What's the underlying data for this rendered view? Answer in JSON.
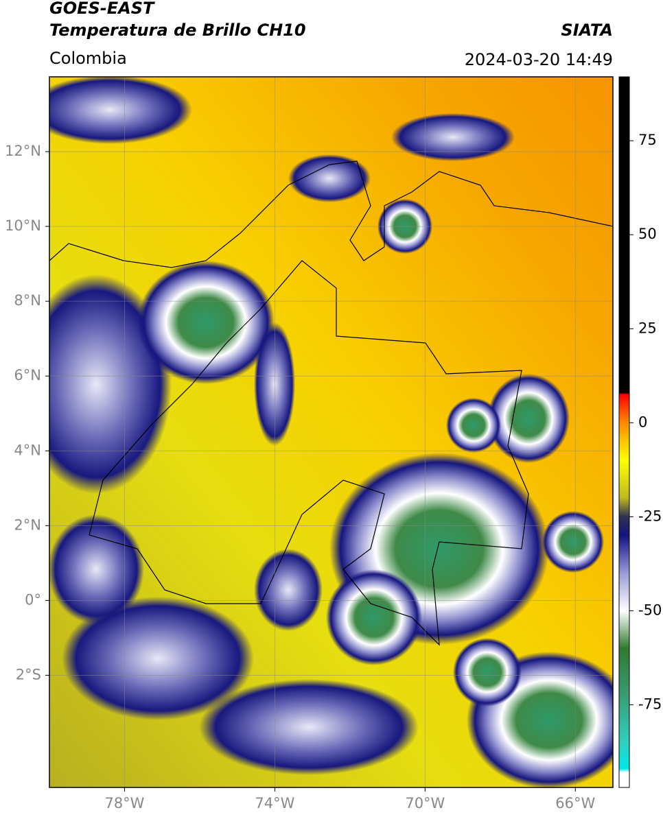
{
  "header": {
    "title": "GOES-EAST",
    "subtitle": "Temperatura de Brillo CH10",
    "region": "Colombia",
    "source": "SIATA",
    "datetime": "2024-03-20 14:49"
  },
  "map": {
    "xlim": [
      -80,
      -65
    ],
    "ylim": [
      -5,
      14
    ],
    "xticks": [
      {
        "value": -78,
        "label": "78°W"
      },
      {
        "value": -74,
        "label": "74°W"
      },
      {
        "value": -70,
        "label": "70°W"
      },
      {
        "value": -66,
        "label": "66°W"
      }
    ],
    "yticks": [
      {
        "value": -2,
        "label": "2°S"
      },
      {
        "value": 0,
        "label": "0°"
      },
      {
        "value": 2,
        "label": "2°N"
      },
      {
        "value": 4,
        "label": "4°N"
      },
      {
        "value": 6,
        "label": "6°N"
      },
      {
        "value": 8,
        "label": "8°N"
      },
      {
        "value": 10,
        "label": "10°N"
      },
      {
        "value": 12,
        "label": "12°N"
      }
    ],
    "grid": true
  },
  "colorbar": {
    "lim": [
      -97,
      92
    ],
    "ticks": [
      -75,
      -50,
      -25,
      0,
      25,
      50,
      75
    ],
    "stops": [
      {
        "value": 92,
        "color": "#000000"
      },
      {
        "value": 8,
        "color": "#000000"
      },
      {
        "value": 7.5,
        "color": "#ff0000"
      },
      {
        "value": 0,
        "color": "#ff8a00"
      },
      {
        "value": -10,
        "color": "#ffff00"
      },
      {
        "value": -20,
        "color": "#c0b820"
      },
      {
        "value": -25,
        "color": "#303050"
      },
      {
        "value": -30,
        "color": "#141480"
      },
      {
        "value": -40,
        "color": "#9a9ad8"
      },
      {
        "value": -50,
        "color": "#ffffff"
      },
      {
        "value": -60,
        "color": "#2f7a2f"
      },
      {
        "value": -72,
        "color": "#3a9a70"
      },
      {
        "value": -85,
        "color": "#30d0c0"
      },
      {
        "value": -92,
        "color": "#00e8e8"
      },
      {
        "value": -93,
        "color": "#ffffff"
      },
      {
        "value": -97,
        "color": "#ffffff"
      }
    ]
  }
}
